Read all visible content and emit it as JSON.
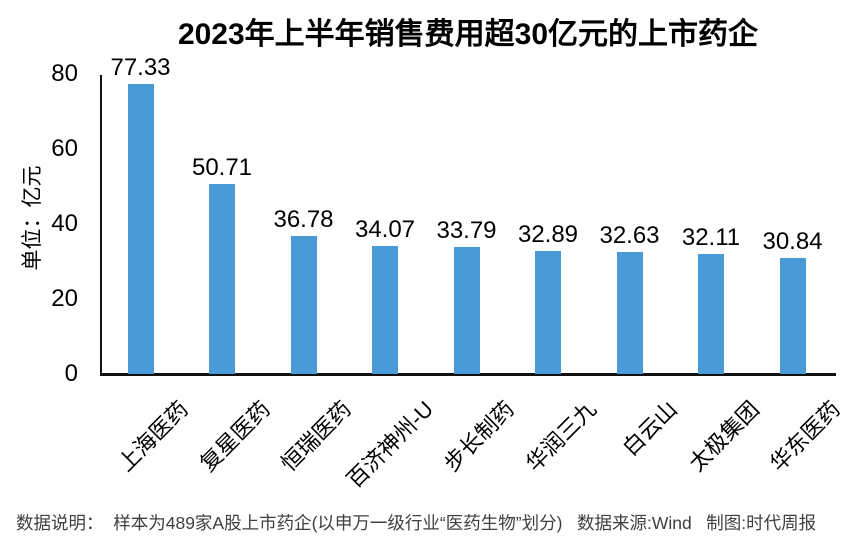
{
  "chart_data": {
    "type": "bar",
    "title": "2023年上半年销售费用超30亿元的上市药企",
    "ylabel": "单位：亿元",
    "xlabel": "",
    "categories": [
      "上海医药",
      "复星医药",
      "恒瑞医药",
      "百济神州-U",
      "步长制药",
      "华润三九",
      "白云山",
      "太极集团",
      "华东医药"
    ],
    "values": [
      77.33,
      50.71,
      36.78,
      34.07,
      33.79,
      32.89,
      32.63,
      32.11,
      30.84
    ],
    "value_labels": [
      "77.33",
      "50.71",
      "36.78",
      "34.07",
      "33.79",
      "32.89",
      "32.63",
      "32.11",
      "30.84"
    ],
    "ylim": [
      0,
      80
    ],
    "yticks": [
      0,
      20,
      40,
      60,
      80
    ],
    "grid": false,
    "legend": "none",
    "bar_color": "#4A9AD8",
    "axis_color": "#111111"
  },
  "footer": {
    "note": "数据说明：  样本为489家A股上市药企(以申万一级行业“医药生物”划分)   数据来源:Wind   制图:时代周报"
  }
}
